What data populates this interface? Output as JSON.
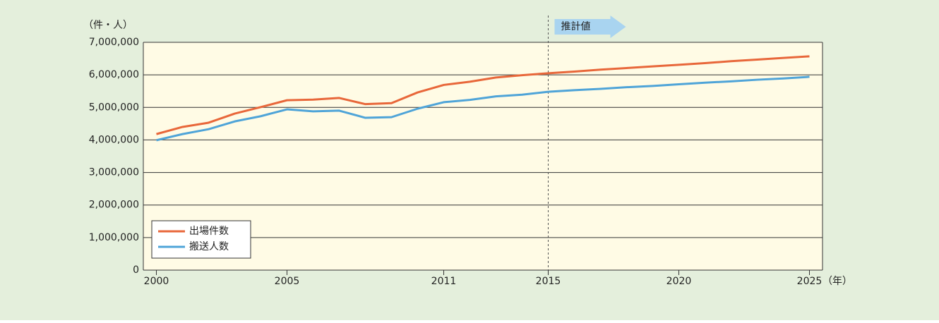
{
  "chart_data": {
    "type": "line",
    "y_label": "（件・人）",
    "x_label": "（年）",
    "x": [
      2000,
      2001,
      2002,
      2003,
      2004,
      2005,
      2006,
      2007,
      2008,
      2009,
      2010,
      2011,
      2012,
      2013,
      2014,
      2015,
      2016,
      2017,
      2018,
      2019,
      2020,
      2021,
      2022,
      2023,
      2024,
      2025
    ],
    "series": [
      {
        "name": "出場件数",
        "color": "#e8673a",
        "values": [
          4180000,
          4400000,
          4530000,
          4810000,
          5010000,
          5220000,
          5240000,
          5290000,
          5100000,
          5130000,
          5460000,
          5690000,
          5790000,
          5920000,
          5990000,
          6050000,
          6100000,
          6160000,
          6210000,
          6260000,
          6310000,
          6360000,
          6420000,
          6470000,
          6520000,
          6570000
        ]
      },
      {
        "name": "搬送人数",
        "color": "#4fa4d8",
        "values": [
          3990000,
          4180000,
          4330000,
          4570000,
          4730000,
          4940000,
          4880000,
          4900000,
          4680000,
          4700000,
          4960000,
          5160000,
          5230000,
          5340000,
          5390000,
          5480000,
          5530000,
          5570000,
          5620000,
          5660000,
          5710000,
          5760000,
          5800000,
          5850000,
          5890000,
          5940000
        ]
      }
    ],
    "xlim": [
      1999.5,
      2025.5
    ],
    "xticks": [
      2000,
      2005,
      2011,
      2015,
      2020,
      2025
    ],
    "ylim": [
      0,
      7000000
    ],
    "yticks": [
      0,
      {
        "value": 1000000,
        "label": "1,000,000"
      },
      {
        "value": 2000000,
        "label": "2,000,000"
      },
      {
        "value": 3000000,
        "label": "3,000,000"
      },
      {
        "value": 4000000,
        "label": "4,000,000"
      },
      {
        "value": 5000000,
        "label": "5,000,000"
      },
      {
        "value": 6000000,
        "label": "6,000,000"
      },
      {
        "value": 7000000,
        "label": "7,000,000"
      }
    ],
    "grid": true,
    "legend": "lower left",
    "annotation": {
      "text": "推計値",
      "x": 2015
    }
  }
}
